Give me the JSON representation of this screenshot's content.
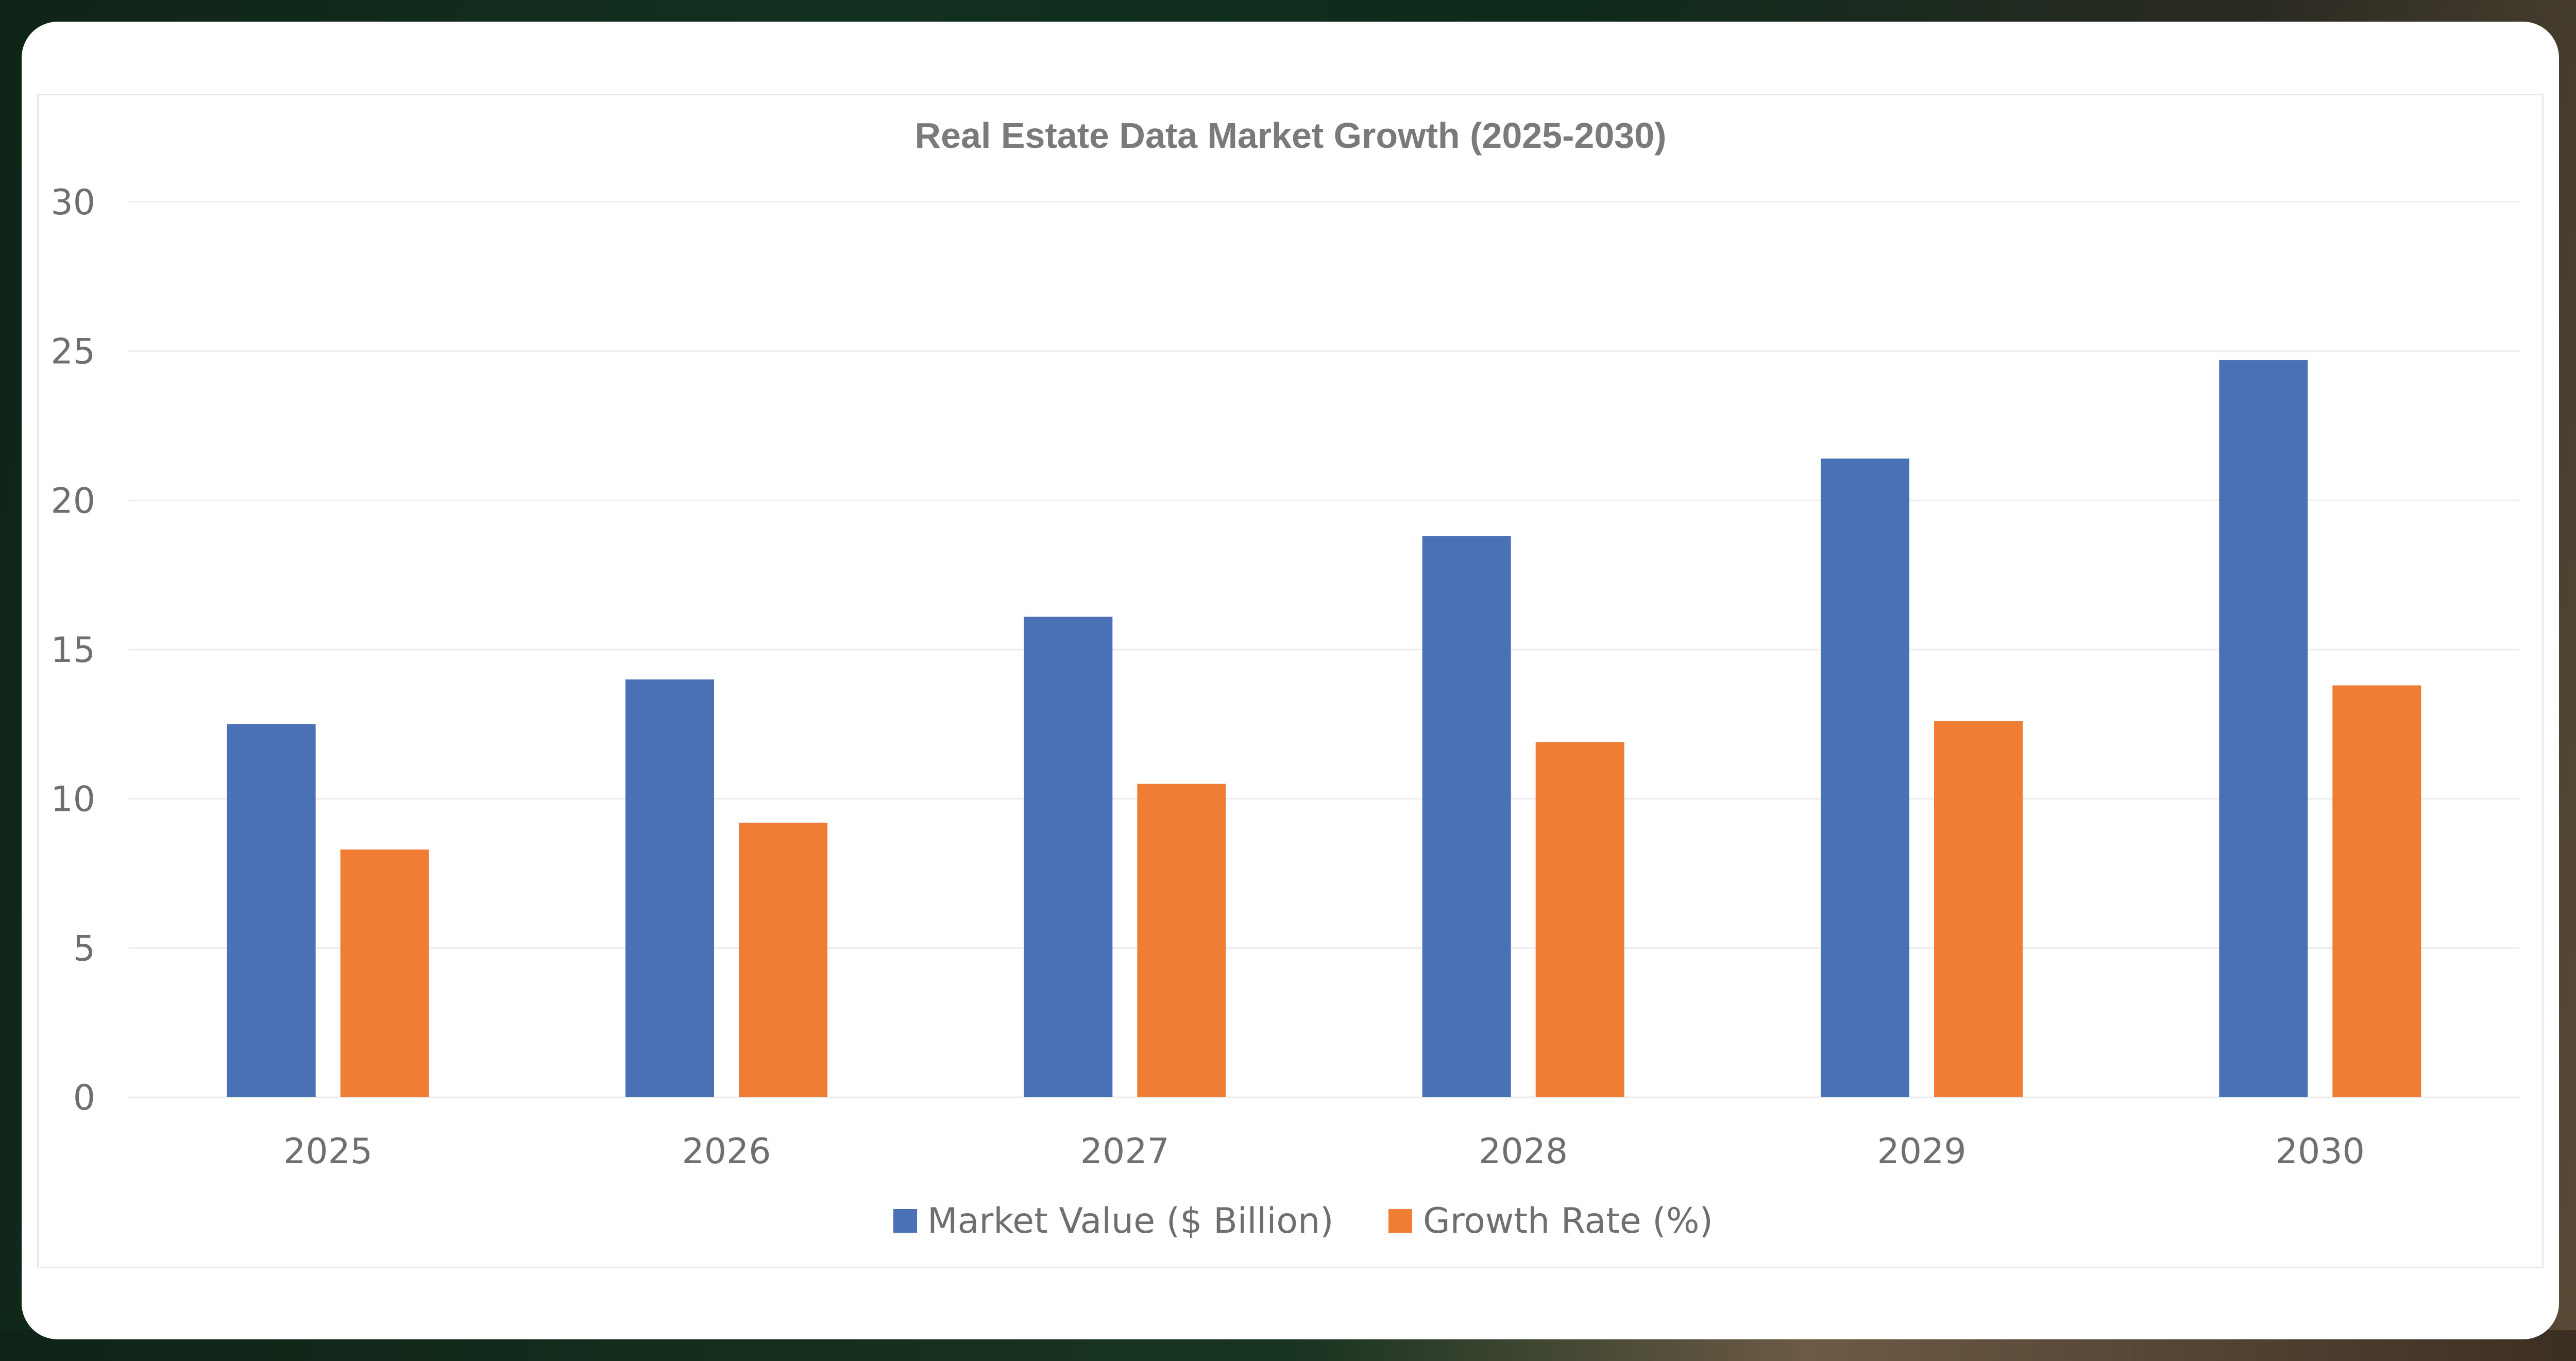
{
  "chart_data": {
    "type": "bar",
    "title": "Real Estate Data Market Growth (2025-2030)",
    "categories": [
      "2025",
      "2026",
      "2027",
      "2028",
      "2029",
      "2030"
    ],
    "series": [
      {
        "name": "Market Value ($ Billion)",
        "color": "#4a71b5",
        "values": [
          12.5,
          14.0,
          16.1,
          18.8,
          21.4,
          24.7
        ]
      },
      {
        "name": "Growth Rate (%)",
        "color": "#ef7e34",
        "values": [
          8.3,
          9.2,
          10.5,
          11.9,
          12.6,
          13.8
        ]
      }
    ],
    "ylim": [
      0,
      30
    ],
    "yticks": [
      "0",
      "5",
      "10",
      "15",
      "20",
      "25",
      "30"
    ],
    "xlabel": "",
    "ylabel": "",
    "grid": true,
    "legend": "bottom"
  }
}
